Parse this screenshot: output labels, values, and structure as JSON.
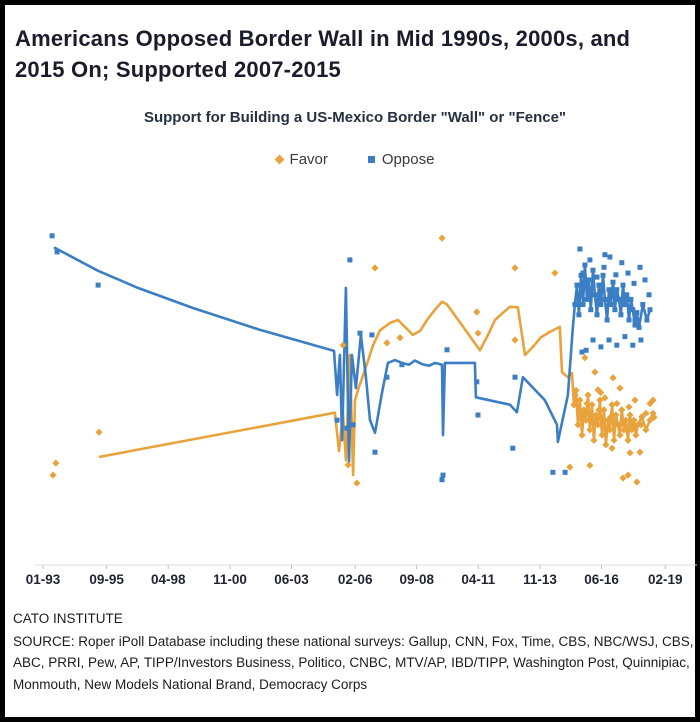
{
  "title": {
    "text": "Americans Opposed Border Wall in Mid 1990s, 2000s, and 2015 On; Supported 2007-2015",
    "color": "#1a1b2b"
  },
  "footer": {
    "org": "CATO INSTITUTE",
    "source": "SOURCE: Roper iPoll Database including these national surveys: Gallup, CNN, Fox, Time, CBS, NBC/WSJ, CBS, ABC, PRRI, Pew, AP, TIPP/Investors Business, Politico, CNBC, MTV/AP, IBD/TIPP, Washington Post, Quinnipiac, Monmouth, New Models National Brand, Democracy Corps"
  },
  "colors": {
    "favor": "#E8A33C",
    "oppose": "#3C7EC3",
    "axis_line": "#dcdcdc",
    "tick": "#c0c0c0",
    "tick_label": "#1f2430"
  },
  "chart_data": {
    "type": "line+scatter",
    "title": "Support for Building a US-Mexico Border \"Wall\" or \"Fence\"",
    "xlabel": "",
    "ylabel": "",
    "grid": false,
    "legend_position": "top-center",
    "x_axis": {
      "tick_labels": [
        "01-93",
        "09-95",
        "04-98",
        "11-00",
        "06-03",
        "02-06",
        "09-08",
        "04-11",
        "11-13",
        "06-16",
        "02-19"
      ],
      "tick_years": [
        1993.04,
        1995.71,
        1998.29,
        2000.88,
        2003.46,
        2006.13,
        2008.71,
        2011.29,
        2013.88,
        2016.46,
        2019.13
      ]
    },
    "y_axis": {
      "unit": "percent",
      "range": [
        10,
        70
      ],
      "labels_shown": false,
      "note": "y-axis has no visible tick labels; values are estimates"
    },
    "series": [
      {
        "name": "Favor",
        "color": "#E8A33C",
        "marker": "diamond",
        "line": [
          [
            1995.43,
            28.0
          ],
          [
            2005.28,
            35.7
          ],
          [
            2005.45,
            29.0
          ],
          [
            2005.62,
            35.7
          ],
          [
            2005.74,
            27.4
          ],
          [
            2005.91,
            45.8
          ],
          [
            2006.04,
            24.8
          ],
          [
            2006.12,
            37.9
          ],
          [
            2006.29,
            40.2
          ],
          [
            2006.54,
            43.2
          ],
          [
            2006.88,
            47.5
          ],
          [
            2007.17,
            50.1
          ],
          [
            2007.59,
            51.4
          ],
          [
            2007.93,
            51.9
          ],
          [
            2008.22,
            50.7
          ],
          [
            2008.55,
            49.3
          ],
          [
            2008.85,
            50.0
          ],
          [
            2009.14,
            51.9
          ],
          [
            2009.47,
            53.7
          ],
          [
            2009.77,
            55.1
          ],
          [
            2009.98,
            54.6
          ],
          [
            2010.66,
            50.7
          ],
          [
            2011.36,
            46.6
          ],
          [
            2011.7,
            49.3
          ],
          [
            2011.99,
            51.9
          ],
          [
            2012.33,
            53.2
          ],
          [
            2012.62,
            54.2
          ],
          [
            2012.95,
            54.1
          ],
          [
            2013.25,
            45.8
          ],
          [
            2013.58,
            47.2
          ],
          [
            2013.92,
            48.9
          ],
          [
            2014.29,
            49.8
          ],
          [
            2014.71,
            50.7
          ],
          [
            2014.8,
            42.8
          ],
          [
            2015.05,
            41.9
          ],
          [
            2015.22,
            42.6
          ],
          [
            2015.3,
            37.1
          ],
          [
            2015.39,
            39.6
          ],
          [
            2015.47,
            33.6
          ],
          [
            2015.55,
            37.9
          ],
          [
            2015.64,
            31.8
          ],
          [
            2015.72,
            36.2
          ],
          [
            2015.81,
            34.4
          ],
          [
            2015.89,
            38.8
          ],
          [
            2015.97,
            32.7
          ],
          [
            2016.06,
            37.1
          ],
          [
            2016.14,
            30.9
          ],
          [
            2016.22,
            35.3
          ],
          [
            2016.31,
            33.6
          ],
          [
            2016.39,
            37.9
          ],
          [
            2016.48,
            31.8
          ],
          [
            2016.56,
            36.2
          ],
          [
            2016.64,
            30.1
          ],
          [
            2016.73,
            34.4
          ],
          [
            2016.81,
            32.7
          ],
          [
            2016.9,
            37.1
          ],
          [
            2016.98,
            30.9
          ],
          [
            2017.06,
            35.3
          ],
          [
            2017.15,
            33.6
          ],
          [
            2017.23,
            31.8
          ],
          [
            2017.31,
            36.2
          ],
          [
            2017.4,
            32.7
          ],
          [
            2017.48,
            34.4
          ],
          [
            2017.57,
            30.9
          ],
          [
            2017.65,
            35.3
          ],
          [
            2017.73,
            32.7
          ],
          [
            2017.82,
            34.4
          ],
          [
            2017.9,
            31.8
          ],
          [
            2017.98,
            33.6
          ],
          [
            2018.15,
            35.0
          ],
          [
            2018.32,
            32.7
          ],
          [
            2018.49,
            34.4
          ],
          [
            2018.62,
            35.6
          ]
        ],
        "scatter": [
          [
            1993.46,
            24.8
          ],
          [
            1993.58,
            26.9
          ],
          [
            1995.39,
            32.3
          ],
          [
            2005.62,
            47.5
          ],
          [
            2005.83,
            26.6
          ],
          [
            2006.2,
            23.4
          ],
          [
            2006.96,
            61.0
          ],
          [
            2007.46,
            47.9
          ],
          [
            2008.01,
            48.8
          ],
          [
            2009.77,
            66.2
          ],
          [
            2011.23,
            53.3
          ],
          [
            2011.28,
            49.6
          ],
          [
            2012.83,
            61.0
          ],
          [
            2012.83,
            48.4
          ],
          [
            2014.5,
            60.1
          ],
          [
            2015.13,
            26.2
          ],
          [
            2015.34,
            38.8
          ],
          [
            2015.6,
            35.6
          ],
          [
            2015.76,
            45.3
          ],
          [
            2015.85,
            37.3
          ],
          [
            2015.97,
            26.5
          ],
          [
            2016.1,
            34.4
          ],
          [
            2016.18,
            42.8
          ],
          [
            2016.31,
            39.7
          ],
          [
            2016.35,
            36.2
          ],
          [
            2016.43,
            39.2
          ],
          [
            2016.6,
            38.3
          ],
          [
            2016.85,
            35.0
          ],
          [
            2016.9,
            29.5
          ],
          [
            2016.94,
            41.8
          ],
          [
            2017.1,
            37.3
          ],
          [
            2017.23,
            40.0
          ],
          [
            2017.36,
            33.9
          ],
          [
            2017.36,
            24.3
          ],
          [
            2017.57,
            24.8
          ],
          [
            2017.61,
            36.7
          ],
          [
            2017.65,
            28.7
          ],
          [
            2017.86,
            37.9
          ],
          [
            2017.94,
            23.6
          ],
          [
            2018.07,
            28.8
          ],
          [
            2018.11,
            33.6
          ],
          [
            2018.32,
            35.6
          ],
          [
            2018.49,
            37.3
          ],
          [
            2018.62,
            37.9
          ],
          [
            2018.66,
            34.9
          ]
        ]
      },
      {
        "name": "Oppose",
        "color": "#3C7EC3",
        "marker": "square",
        "line": [
          [
            1993.54,
            64.5
          ],
          [
            1995.35,
            60.5
          ],
          [
            1997.02,
            57.5
          ],
          [
            1999.33,
            54.0
          ],
          [
            2002.05,
            50.3
          ],
          [
            2005.24,
            46.5
          ],
          [
            2005.37,
            38.8
          ],
          [
            2005.49,
            45.8
          ],
          [
            2005.58,
            30.9
          ],
          [
            2005.74,
            57.5
          ],
          [
            2005.87,
            27.1
          ],
          [
            2005.99,
            45.8
          ],
          [
            2006.16,
            40.0
          ],
          [
            2006.37,
            49.3
          ],
          [
            2006.58,
            41.9
          ],
          [
            2006.75,
            34.4
          ],
          [
            2006.96,
            32.2
          ],
          [
            2007.25,
            39.1
          ],
          [
            2007.5,
            44.4
          ],
          [
            2007.8,
            44.9
          ],
          [
            2008.09,
            44.4
          ],
          [
            2008.38,
            44.1
          ],
          [
            2008.63,
            44.8
          ],
          [
            2008.93,
            44.2
          ],
          [
            2009.22,
            43.9
          ],
          [
            2009.47,
            44.4
          ],
          [
            2009.77,
            44.1
          ],
          [
            2009.81,
            31.8
          ],
          [
            2009.89,
            44.4
          ],
          [
            2011.15,
            44.4
          ],
          [
            2011.19,
            38.4
          ],
          [
            2012.62,
            37.1
          ],
          [
            2012.91,
            35.8
          ],
          [
            2013.16,
            41.9
          ],
          [
            2014.08,
            37.9
          ],
          [
            2014.59,
            33.6
          ],
          [
            2014.63,
            30.6
          ],
          [
            2015.05,
            38.8
          ],
          [
            2015.26,
            50.7
          ],
          [
            2015.34,
            54.6
          ],
          [
            2015.43,
            58.0
          ],
          [
            2015.51,
            52.8
          ],
          [
            2015.6,
            59.7
          ],
          [
            2015.68,
            54.6
          ],
          [
            2015.76,
            61.5
          ],
          [
            2015.85,
            55.5
          ],
          [
            2015.93,
            58.9
          ],
          [
            2016.01,
            53.7
          ],
          [
            2016.1,
            60.6
          ],
          [
            2016.18,
            56.3
          ],
          [
            2016.27,
            52.8
          ],
          [
            2016.35,
            58.0
          ],
          [
            2016.43,
            54.6
          ],
          [
            2016.52,
            59.7
          ],
          [
            2016.6,
            55.5
          ],
          [
            2016.69,
            51.9
          ],
          [
            2016.77,
            57.2
          ],
          [
            2016.85,
            54.6
          ],
          [
            2016.94,
            58.5
          ],
          [
            2017.02,
            53.7
          ],
          [
            2017.1,
            57.2
          ],
          [
            2017.19,
            55.5
          ],
          [
            2017.27,
            52.8
          ],
          [
            2017.36,
            58.0
          ],
          [
            2017.44,
            54.6
          ],
          [
            2017.52,
            56.3
          ],
          [
            2017.61,
            51.9
          ],
          [
            2017.69,
            55.5
          ],
          [
            2017.77,
            53.7
          ],
          [
            2017.86,
            51.0
          ],
          [
            2017.94,
            53.2
          ],
          [
            2018.03,
            50.6
          ],
          [
            2018.19,
            54.6
          ],
          [
            2018.36,
            51.9
          ],
          [
            2018.49,
            53.7
          ]
        ],
        "scatter": [
          [
            1993.42,
            66.6
          ],
          [
            1993.63,
            63.8
          ],
          [
            1995.35,
            58.0
          ],
          [
            2005.37,
            34.4
          ],
          [
            2005.78,
            33.0
          ],
          [
            2005.91,
            62.4
          ],
          [
            2006.04,
            33.6
          ],
          [
            2006.33,
            49.6
          ],
          [
            2006.83,
            49.3
          ],
          [
            2006.96,
            28.8
          ],
          [
            2007.46,
            41.9
          ],
          [
            2008.09,
            44.1
          ],
          [
            2009.77,
            24.0
          ],
          [
            2009.81,
            24.8
          ],
          [
            2009.98,
            46.7
          ],
          [
            2011.23,
            41.1
          ],
          [
            2011.28,
            35.3
          ],
          [
            2012.74,
            29.5
          ],
          [
            2012.83,
            41.9
          ],
          [
            2014.42,
            25.3
          ],
          [
            2014.93,
            25.3
          ],
          [
            2015.55,
            64.3
          ],
          [
            2015.64,
            46.3
          ],
          [
            2015.68,
            60.1
          ],
          [
            2015.81,
            46.6
          ],
          [
            2015.97,
            62.4
          ],
          [
            2016.1,
            48.4
          ],
          [
            2016.27,
            59.4
          ],
          [
            2016.43,
            47.2
          ],
          [
            2016.56,
            61.1
          ],
          [
            2016.6,
            63.3
          ],
          [
            2016.77,
            48.4
          ],
          [
            2016.81,
            62.9
          ],
          [
            2017.06,
            59.8
          ],
          [
            2017.1,
            47.5
          ],
          [
            2017.31,
            61.9
          ],
          [
            2017.44,
            49.0
          ],
          [
            2017.57,
            60.1
          ],
          [
            2017.77,
            47.5
          ],
          [
            2017.82,
            58.3
          ],
          [
            2017.86,
            51.9
          ],
          [
            2018.07,
            61.1
          ],
          [
            2018.11,
            48.4
          ],
          [
            2018.28,
            58.9
          ],
          [
            2018.45,
            56.3
          ]
        ]
      }
    ]
  }
}
